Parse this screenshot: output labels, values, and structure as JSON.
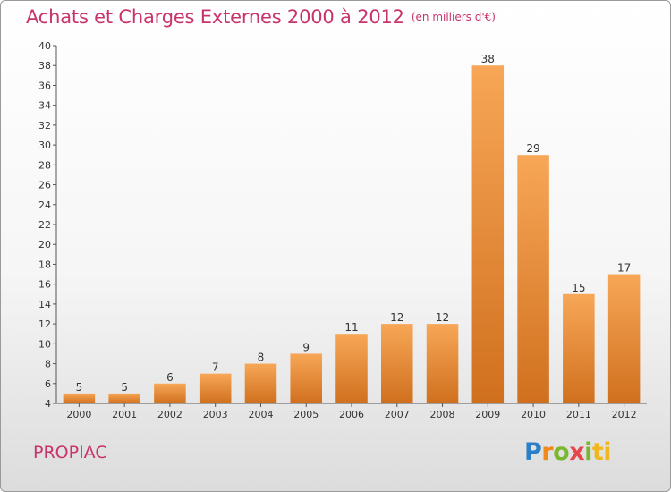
{
  "title": "Achats et Charges Externes 2000 à 2012",
  "unit_note": "(en milliers d'€)",
  "commune": "PROPIAC",
  "logo": {
    "letters": [
      "P",
      "r",
      "o",
      "x",
      "i",
      "ti"
    ]
  },
  "colors": {
    "bar_top": "#f7a757",
    "bar_bottom": "#d0701e",
    "title": "#c8336c",
    "axis": "#555555"
  },
  "chart_data": {
    "type": "bar",
    "categories": [
      "2000",
      "2001",
      "2002",
      "2003",
      "2004",
      "2005",
      "2006",
      "2007",
      "2008",
      "2009",
      "2010",
      "2011",
      "2012"
    ],
    "values": [
      5,
      5,
      6,
      7,
      8,
      9,
      11,
      12,
      12,
      38,
      29,
      15,
      17
    ],
    "title": "Achats et Charges Externes 2000 à 2012",
    "ylim": [
      4,
      40
    ],
    "yticks": [
      4,
      6,
      8,
      10,
      12,
      14,
      16,
      18,
      20,
      22,
      24,
      26,
      28,
      30,
      32,
      34,
      36,
      38,
      40
    ],
    "grid": false,
    "legend": "none",
    "data_labels": true
  }
}
